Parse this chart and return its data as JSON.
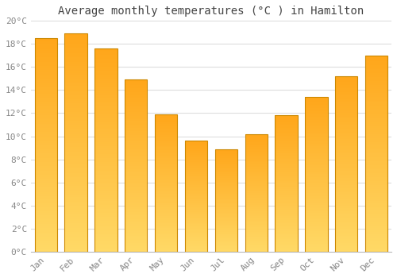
{
  "title": "Average monthly temperatures (°C ) in Hamilton",
  "months": [
    "Jan",
    "Feb",
    "Mar",
    "Apr",
    "May",
    "Jun",
    "Jul",
    "Aug",
    "Sep",
    "Oct",
    "Nov",
    "Dec"
  ],
  "values": [
    18.5,
    18.9,
    17.6,
    14.9,
    11.9,
    9.6,
    8.9,
    10.2,
    11.8,
    13.4,
    15.2,
    17.0
  ],
  "bar_color_top": "#FFA500",
  "bar_color_bottom": "#FFD966",
  "bar_edge_color": "#CC8800",
  "background_color": "#FFFFFF",
  "grid_color": "#DDDDDD",
  "ylim": [
    0,
    20
  ],
  "yticks": [
    0,
    2,
    4,
    6,
    8,
    10,
    12,
    14,
    16,
    18,
    20
  ],
  "title_fontsize": 10,
  "tick_fontsize": 8,
  "tick_color": "#888888",
  "title_color": "#444444",
  "font_family": "monospace",
  "bar_width": 0.75
}
